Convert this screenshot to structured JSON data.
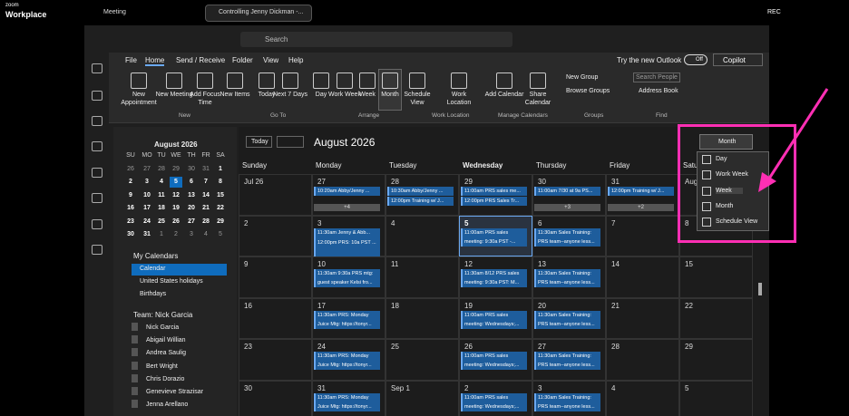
{
  "zoom_bar": {
    "brand_top": "zoom",
    "brand": "Workplace",
    "meeting": "Meeting",
    "tab": "Controlling Jenny Dickman -...",
    "rec": "REC"
  },
  "title_bar": {
    "search": "Search"
  },
  "menu": {
    "tabs": [
      "File",
      "Home",
      "Send / Receive",
      "Folder",
      "View",
      "Help"
    ],
    "try_new": "Try the new Outlook",
    "toggle": "Off",
    "copilot": "Copilot"
  },
  "ribbon": {
    "buttons": [
      "New Appointment",
      "New Meeting",
      "Add Focus Time",
      "New Items",
      "Today",
      "Next 7 Days",
      "Day",
      "Work Week",
      "Week",
      "Month",
      "Schedule View",
      "Work Location",
      "Add Calendar",
      "Share Calendar"
    ],
    "small": [
      "New Group",
      "Browse Groups",
      "Search People",
      "Address Book"
    ],
    "groups": [
      "New",
      "Go To",
      "Arrange",
      "Work Location",
      "Manage Calendars",
      "Groups",
      "Find"
    ]
  },
  "mini_calendar": {
    "title": "August 2026",
    "weekdays": [
      "SU",
      "MO",
      "TU",
      "WE",
      "TH",
      "FR",
      "SA"
    ],
    "weeks": [
      [
        "26",
        "27",
        "28",
        "29",
        "30",
        "31",
        "1"
      ],
      [
        "2",
        "3",
        "4",
        "5",
        "6",
        "7",
        "8"
      ],
      [
        "9",
        "10",
        "11",
        "12",
        "13",
        "14",
        "15"
      ],
      [
        "16",
        "17",
        "18",
        "19",
        "20",
        "21",
        "22"
      ],
      [
        "23",
        "24",
        "25",
        "26",
        "27",
        "28",
        "29"
      ],
      [
        "30",
        "31",
        "1",
        "2",
        "3",
        "4",
        "5"
      ]
    ]
  },
  "calendars": {
    "my_title": "My Calendars",
    "my": [
      "Calendar",
      "United States holidays",
      "Birthdays"
    ],
    "team_title": "Team: Nick Garcia",
    "team": [
      "Nick Garcia",
      "Abigail Willian",
      "Andrea Saulig",
      "Bert Wright",
      "Chris Dorazio",
      "Genevieve Strazisar",
      "Jenna Arellano"
    ]
  },
  "calendar": {
    "today": "Today",
    "title": "August 2026",
    "view": "Month",
    "days": [
      "Sunday",
      "Monday",
      "Tuesday",
      "Wednesday",
      "Thursday",
      "Friday",
      "Saturday"
    ],
    "weeks": [
      [
        {
          "date": "Jul 26"
        },
        {
          "date": "27",
          "events": [
            "10:20am Abby/Jenny ..."
          ],
          "more": "+4"
        },
        {
          "date": "28",
          "events": [
            "10:30am Abby/Jenny ...",
            "12:00pm Training w/ J..."
          ]
        },
        {
          "date": "29",
          "events": [
            "11:00am PRS sales me...",
            "12:00pm PRS Sales Tr..."
          ]
        },
        {
          "date": "30",
          "events": [
            "11:00am 7/30 at 9a PS..."
          ],
          "more": "+3"
        },
        {
          "date": "31",
          "events": [
            "12:00pm Training w/ J..."
          ],
          "more": "+2"
        },
        {
          "date": "Aug 1"
        }
      ],
      [
        {
          "date": "2"
        },
        {
          "date": "3",
          "events": [
            "11:30am Jenny & Abb...",
            "12:00pm PRS: 10a PST ..."
          ]
        },
        {
          "date": "4"
        },
        {
          "date": "5",
          "events": [
            "11:00am PRS sales meeting: 9:30a PST -..."
          ]
        },
        {
          "date": "6",
          "events": [
            "11:30am Sales Training: PRS team--anyone less..."
          ]
        },
        {
          "date": "7"
        },
        {
          "date": "8"
        }
      ],
      [
        {
          "date": "9"
        },
        {
          "date": "10",
          "events": [
            "11:30am 9:30a PRS mtg: guest speaker Kelsi fro..."
          ]
        },
        {
          "date": "11"
        },
        {
          "date": "12",
          "events": [
            "11:30am 8/12 PRS sales meeting: 9:30a PST: M..."
          ]
        },
        {
          "date": "13",
          "events": [
            "11:30am Sales Training: PRS team--anyone less..."
          ]
        },
        {
          "date": "14"
        },
        {
          "date": "15"
        }
      ],
      [
        {
          "date": "16"
        },
        {
          "date": "17",
          "events": [
            "11:30am PRS: Monday Juice Mtg: https://tonyr..."
          ]
        },
        {
          "date": "18"
        },
        {
          "date": "19",
          "events": [
            "11:00am PRS sales meeting: Wednesdays;..."
          ]
        },
        {
          "date": "20",
          "events": [
            "11:30am Sales Training: PRS team--anyone less..."
          ]
        },
        {
          "date": "21"
        },
        {
          "date": "22"
        }
      ],
      [
        {
          "date": "23"
        },
        {
          "date": "24",
          "events": [
            "11:30am PRS: Monday Juice Mtg: https://tonyr..."
          ]
        },
        {
          "date": "25"
        },
        {
          "date": "26",
          "events": [
            "11:00am PRS sales meeting: Wednesdays;..."
          ]
        },
        {
          "date": "27",
          "events": [
            "11:30am Sales Training: PRS team--anyone less..."
          ]
        },
        {
          "date": "28"
        },
        {
          "date": "29"
        }
      ],
      [
        {
          "date": "30"
        },
        {
          "date": "31",
          "events": [
            "11:30am PRS: Monday Juice Mtg: https://tonyr..."
          ]
        },
        {
          "date": "Sep 1"
        },
        {
          "date": "2",
          "events": [
            "11:00am PRS sales meeting: Wednesdays;..."
          ]
        },
        {
          "date": "3",
          "events": [
            "11:30am Sales Training: PRS team--anyone less..."
          ]
        },
        {
          "date": "4"
        },
        {
          "date": "5"
        }
      ]
    ]
  },
  "view_menu": [
    "Day",
    "Work Week",
    "Week",
    "Month",
    "Schedule View"
  ]
}
